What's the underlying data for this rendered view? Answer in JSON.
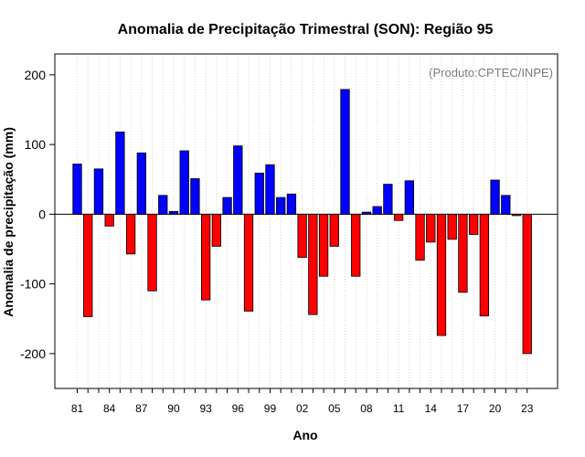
{
  "chart_data": {
    "type": "bar",
    "title": "Anomalia de Precipitação Trimestral (SON): Região 95",
    "subtitle": "(Produto:CPTEC/INPE)",
    "xlabel": "Ano",
    "ylabel": "Anomalia de precipitação (mm)",
    "ylim": [
      -250,
      230
    ],
    "yticks": [
      -200,
      -100,
      0,
      100,
      200
    ],
    "xtick_labels": [
      "81",
      "84",
      "87",
      "90",
      "93",
      "96",
      "99",
      "02",
      "05",
      "08",
      "11",
      "14",
      "17",
      "20",
      "23"
    ],
    "grid": "vertical dotted",
    "positive_color": "#0000ff",
    "negative_color": "#ff0000",
    "categories": [
      "1981",
      "1982",
      "1983",
      "1984",
      "1985",
      "1986",
      "1987",
      "1988",
      "1989",
      "1990",
      "1991",
      "1992",
      "1993",
      "1994",
      "1995",
      "1996",
      "1997",
      "1998",
      "1999",
      "2000",
      "2001",
      "2002",
      "2003",
      "2004",
      "2005",
      "2006",
      "2007",
      "2008",
      "2009",
      "2010",
      "2011",
      "2012",
      "2013",
      "2014",
      "2015",
      "2016",
      "2017",
      "2018",
      "2019",
      "2020",
      "2021",
      "2022",
      "2023"
    ],
    "values": [
      72,
      -147,
      65,
      -17,
      118,
      -57,
      88,
      -110,
      27,
      4,
      91,
      51,
      -123,
      -46,
      24,
      98,
      -139,
      59,
      71,
      24,
      29,
      -62,
      -144,
      -89,
      -46,
      179,
      -89,
      3,
      11,
      43,
      -9,
      48,
      -66,
      -40,
      -174,
      -36,
      -112,
      -29,
      -146,
      49,
      27,
      -2,
      -200
    ]
  }
}
